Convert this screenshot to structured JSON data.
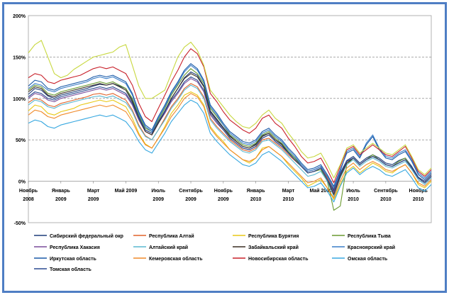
{
  "chart_data": {
    "type": "line",
    "title": "",
    "xlabel": "",
    "ylabel": "",
    "ylim": [
      -50,
      200
    ],
    "y_ticks": [
      "200%",
      "150%",
      "100%",
      "50%",
      "0%",
      "-50%"
    ],
    "y_tick_values": [
      200,
      150,
      100,
      50,
      0,
      -50
    ],
    "grid": "horizontal dashed",
    "legend_position": "bottom",
    "x_range": [
      0,
      62
    ],
    "x_ticks": [
      {
        "line1": "Ноябрь",
        "line2": "2008",
        "x": 0
      },
      {
        "line1": "Январь",
        "line2": "2009",
        "x": 5
      },
      {
        "line1": "Март",
        "line2": "2009",
        "x": 10
      },
      {
        "line1": "Май 2009",
        "line2": "",
        "x": 15
      },
      {
        "line1": "Июль",
        "line2": "2009",
        "x": 20
      },
      {
        "line1": "Сентябрь",
        "line2": "2009",
        "x": 25
      },
      {
        "line1": "Ноябрь",
        "line2": "2009",
        "x": 30
      },
      {
        "line1": "Январь",
        "line2": "2010",
        "x": 35
      },
      {
        "line1": "Март",
        "line2": "2010",
        "x": 40
      },
      {
        "line1": "Май 2010",
        "line2": "",
        "x": 45
      },
      {
        "line1": "Июль",
        "line2": "2010",
        "x": 50
      },
      {
        "line1": "Сентябрь",
        "line2": "2010",
        "x": 55
      },
      {
        "line1": "Ноябрь",
        "line2": "2010",
        "x": 60
      }
    ],
    "series": [
      {
        "name": "Сибирский федеральный окр",
        "color": "#1f3d7a",
        "values": [
          105,
          112,
          110,
          103,
          100,
          104,
          106,
          108,
          110,
          112,
          115,
          117,
          116,
          118,
          115,
          112,
          98,
          78,
          62,
          58,
          72,
          85,
          100,
          112,
          125,
          132,
          128,
          115,
          85,
          75,
          65,
          55,
          48,
          42,
          40,
          45,
          55,
          58,
          50,
          45,
          35,
          28,
          20,
          12,
          14,
          18,
          5,
          -12,
          10,
          25,
          30,
          22,
          28,
          32,
          28,
          22,
          20,
          25,
          28,
          18,
          5,
          0,
          8
        ]
      },
      {
        "name": "Республика Алтай",
        "color": "#e0622a",
        "values": [
          95,
          100,
          98,
          92,
          90,
          94,
          96,
          98,
          100,
          102,
          105,
          106,
          104,
          106,
          102,
          98,
          86,
          68,
          55,
          50,
          62,
          76,
          90,
          100,
          112,
          118,
          114,
          102,
          76,
          66,
          58,
          50,
          44,
          38,
          36,
          40,
          50,
          52,
          46,
          40,
          32,
          25,
          18,
          10,
          12,
          16,
          4,
          -10,
          8,
          22,
          28,
          20,
          26,
          30,
          26,
          20,
          18,
          22,
          26,
          16,
          4,
          -2,
          6
        ]
      },
      {
        "name": "Республика Бурятия",
        "color": "#e8c816",
        "values": [
          85,
          92,
          90,
          82,
          80,
          84,
          86,
          88,
          92,
          94,
          96,
          98,
          96,
          98,
          94,
          90,
          76,
          58,
          45,
          40,
          52,
          66,
          82,
          92,
          104,
          108,
          104,
          92,
          66,
          56,
          48,
          38,
          32,
          26,
          22,
          28,
          40,
          42,
          36,
          30,
          20,
          12,
          4,
          -6,
          -2,
          2,
          -8,
          -22,
          -4,
          12,
          18,
          10,
          16,
          22,
          18,
          12,
          10,
          16,
          20,
          10,
          -4,
          -8,
          0
        ]
      },
      {
        "name": "Республика Тыва",
        "color": "#6a9a30",
        "values": [
          110,
          116,
          114,
          106,
          104,
          108,
          110,
          112,
          114,
          116,
          118,
          120,
          118,
          120,
          116,
          112,
          100,
          80,
          64,
          60,
          74,
          88,
          104,
          116,
          128,
          136,
          130,
          118,
          88,
          78,
          68,
          56,
          50,
          44,
          42,
          46,
          56,
          60,
          52,
          46,
          36,
          28,
          18,
          10,
          12,
          14,
          0,
          -35,
          -30,
          20,
          28,
          20,
          26,
          32,
          26,
          20,
          18,
          24,
          28,
          16,
          4,
          -2,
          6
        ]
      },
      {
        "name": "Республика Хакасия",
        "color": "#7a4c9a",
        "values": [
          100,
          106,
          104,
          98,
          96,
          100,
          102,
          104,
          106,
          108,
          110,
          112,
          110,
          112,
          108,
          104,
          92,
          74,
          60,
          56,
          70,
          82,
          96,
          106,
          118,
          124,
          120,
          108,
          80,
          70,
          62,
          52,
          46,
          40,
          38,
          42,
          52,
          56,
          48,
          42,
          34,
          26,
          18,
          10,
          12,
          16,
          2,
          -14,
          8,
          24,
          28,
          20,
          26,
          30,
          26,
          20,
          18,
          22,
          26,
          16,
          4,
          -2,
          6
        ]
      },
      {
        "name": "Алтайский край",
        "color": "#5ab8d0",
        "values": [
          92,
          98,
          96,
          90,
          88,
          92,
          94,
          96,
          98,
          100,
          102,
          103,
          101,
          103,
          99,
          95,
          84,
          66,
          54,
          50,
          62,
          74,
          88,
          98,
          110,
          116,
          112,
          100,
          74,
          64,
          56,
          48,
          42,
          36,
          34,
          38,
          48,
          50,
          44,
          38,
          30,
          22,
          14,
          6,
          8,
          12,
          0,
          -18,
          4,
          20,
          26,
          18,
          24,
          28,
          24,
          18,
          16,
          20,
          24,
          14,
          2,
          -4,
          4
        ]
      },
      {
        "name": "Забайкальский край",
        "color": "#3a2e22",
        "values": [
          108,
          114,
          112,
          104,
          102,
          106,
          108,
          110,
          112,
          114,
          116,
          118,
          116,
          118,
          114,
          110,
          96,
          76,
          60,
          56,
          70,
          84,
          100,
          112,
          124,
          130,
          126,
          114,
          84,
          74,
          64,
          54,
          48,
          42,
          40,
          44,
          54,
          58,
          50,
          44,
          34,
          26,
          18,
          10,
          12,
          16,
          2,
          -16,
          6,
          22,
          28,
          20,
          26,
          30,
          26,
          20,
          18,
          22,
          26,
          16,
          4,
          -2,
          6
        ]
      },
      {
        "name": "Красноярский край",
        "color": "#3a7ec8",
        "values": [
          112,
          118,
          116,
          110,
          108,
          112,
          114,
          116,
          118,
          120,
          124,
          126,
          124,
          126,
          122,
          118,
          104,
          82,
          66,
          60,
          76,
          90,
          106,
          118,
          132,
          140,
          134,
          120,
          90,
          80,
          68,
          58,
          52,
          46,
          44,
          48,
          58,
          62,
          54,
          48,
          38,
          30,
          20,
          12,
          14,
          18,
          6,
          -8,
          12,
          36,
          40,
          30,
          46,
          56,
          40,
          30,
          28,
          34,
          38,
          26,
          10,
          4,
          12
        ]
      },
      {
        "name": "Иркутская область",
        "color": "#1a5aa8",
        "values": [
          115,
          122,
          120,
          112,
          110,
          114,
          116,
          118,
          120,
          122,
          126,
          128,
          126,
          128,
          124,
          120,
          106,
          84,
          68,
          62,
          78,
          92,
          108,
          120,
          134,
          142,
          136,
          122,
          92,
          82,
          70,
          60,
          54,
          48,
          46,
          50,
          60,
          64,
          56,
          50,
          40,
          32,
          22,
          14,
          16,
          20,
          8,
          -6,
          14,
          34,
          38,
          28,
          44,
          54,
          38,
          28,
          26,
          32,
          36,
          24,
          8,
          2,
          10
        ]
      },
      {
        "name": "Кемеровская область",
        "color": "#f08a2a",
        "values": [
          80,
          86,
          84,
          78,
          76,
          80,
          82,
          84,
          86,
          88,
          90,
          92,
          90,
          92,
          88,
          84,
          72,
          56,
          44,
          40,
          52,
          64,
          78,
          88,
          100,
          106,
          102,
          90,
          64,
          54,
          46,
          38,
          32,
          26,
          24,
          28,
          38,
          42,
          36,
          30,
          22,
          14,
          6,
          -2,
          0,
          4,
          -8,
          -20,
          0,
          16,
          22,
          14,
          20,
          24,
          20,
          14,
          12,
          16,
          20,
          10,
          -2,
          -6,
          2
        ]
      },
      {
        "name": "Новосибирская область",
        "color": "#c8202a",
        "values": [
          125,
          130,
          128,
          120,
          118,
          122,
          124,
          126,
          128,
          132,
          136,
          138,
          136,
          138,
          134,
          130,
          116,
          94,
          78,
          72,
          88,
          104,
          120,
          134,
          150,
          160,
          154,
          138,
          106,
          96,
          84,
          74,
          68,
          62,
          58,
          64,
          76,
          80,
          70,
          64,
          52,
          42,
          30,
          22,
          24,
          28,
          14,
          -2,
          18,
          38,
          42,
          32,
          38,
          44,
          38,
          32,
          30,
          36,
          42,
          28,
          12,
          6,
          14
        ]
      },
      {
        "name": "Омская область",
        "color": "#38a8e0",
        "values": [
          70,
          74,
          72,
          66,
          64,
          68,
          70,
          72,
          74,
          76,
          78,
          80,
          78,
          80,
          76,
          72,
          62,
          48,
          38,
          34,
          46,
          58,
          72,
          82,
          92,
          98,
          94,
          82,
          58,
          48,
          40,
          32,
          26,
          20,
          18,
          22,
          32,
          36,
          30,
          24,
          16,
          8,
          0,
          -8,
          -6,
          -2,
          -12,
          -25,
          -6,
          10,
          16,
          8,
          14,
          18,
          14,
          8,
          6,
          10,
          14,
          4,
          -8,
          -12,
          -4
        ]
      },
      {
        "name": "Томская область",
        "color": "#2a4a90",
        "values": [
          102,
          108,
          106,
          100,
          98,
          102,
          104,
          106,
          108,
          110,
          112,
          114,
          112,
          114,
          110,
          106,
          94,
          76,
          62,
          58,
          72,
          84,
          98,
          108,
          120,
          126,
          122,
          110,
          82,
          72,
          62,
          52,
          46,
          40,
          38,
          42,
          52,
          56,
          48,
          42,
          34,
          26,
          18,
          10,
          12,
          16,
          2,
          -10,
          8,
          24,
          28,
          20,
          26,
          30,
          26,
          20,
          18,
          22,
          26,
          16,
          4,
          -2,
          6
        ]
      },
      {
        "name": "",
        "color": "#c8d840",
        "values": [
          155,
          165,
          170,
          150,
          130,
          125,
          128,
          135,
          140,
          145,
          150,
          152,
          154,
          156,
          162,
          165,
          140,
          115,
          100,
          100,
          105,
          110,
          130,
          150,
          162,
          168,
          158,
          140,
          110,
          100,
          90,
          80,
          72,
          66,
          64,
          70,
          80,
          86,
          76,
          70,
          58,
          48,
          36,
          28,
          30,
          34,
          20,
          4,
          20,
          40,
          44,
          34,
          40,
          46,
          40,
          34,
          32,
          38,
          44,
          30,
          14,
          8,
          16
        ]
      }
    ]
  },
  "legend": [
    {
      "label": "Сибирский федеральный окр",
      "color": "#1f3d7a"
    },
    {
      "label": "Республика Алтай",
      "color": "#e0622a"
    },
    {
      "label": "Республика Бурятия",
      "color": "#e8c816"
    },
    {
      "label": "Республика Тыва",
      "color": "#6a9a30"
    },
    {
      "label": "Республика Хакасия",
      "color": "#7a4c9a"
    },
    {
      "label": "Алтайский край",
      "color": "#5ab8d0"
    },
    {
      "label": "Забайкальский край",
      "color": "#3a2e22"
    },
    {
      "label": "Красноярский край",
      "color": "#3a7ec8"
    },
    {
      "label": "Иркутская область",
      "color": "#1a5aa8"
    },
    {
      "label": "Кемеровская область",
      "color": "#f08a2a"
    },
    {
      "label": "Новосибирская область",
      "color": "#c8202a"
    },
    {
      "label": "Омская область",
      "color": "#38a8e0"
    },
    {
      "label": "Томская область",
      "color": "#2a4a90"
    }
  ]
}
